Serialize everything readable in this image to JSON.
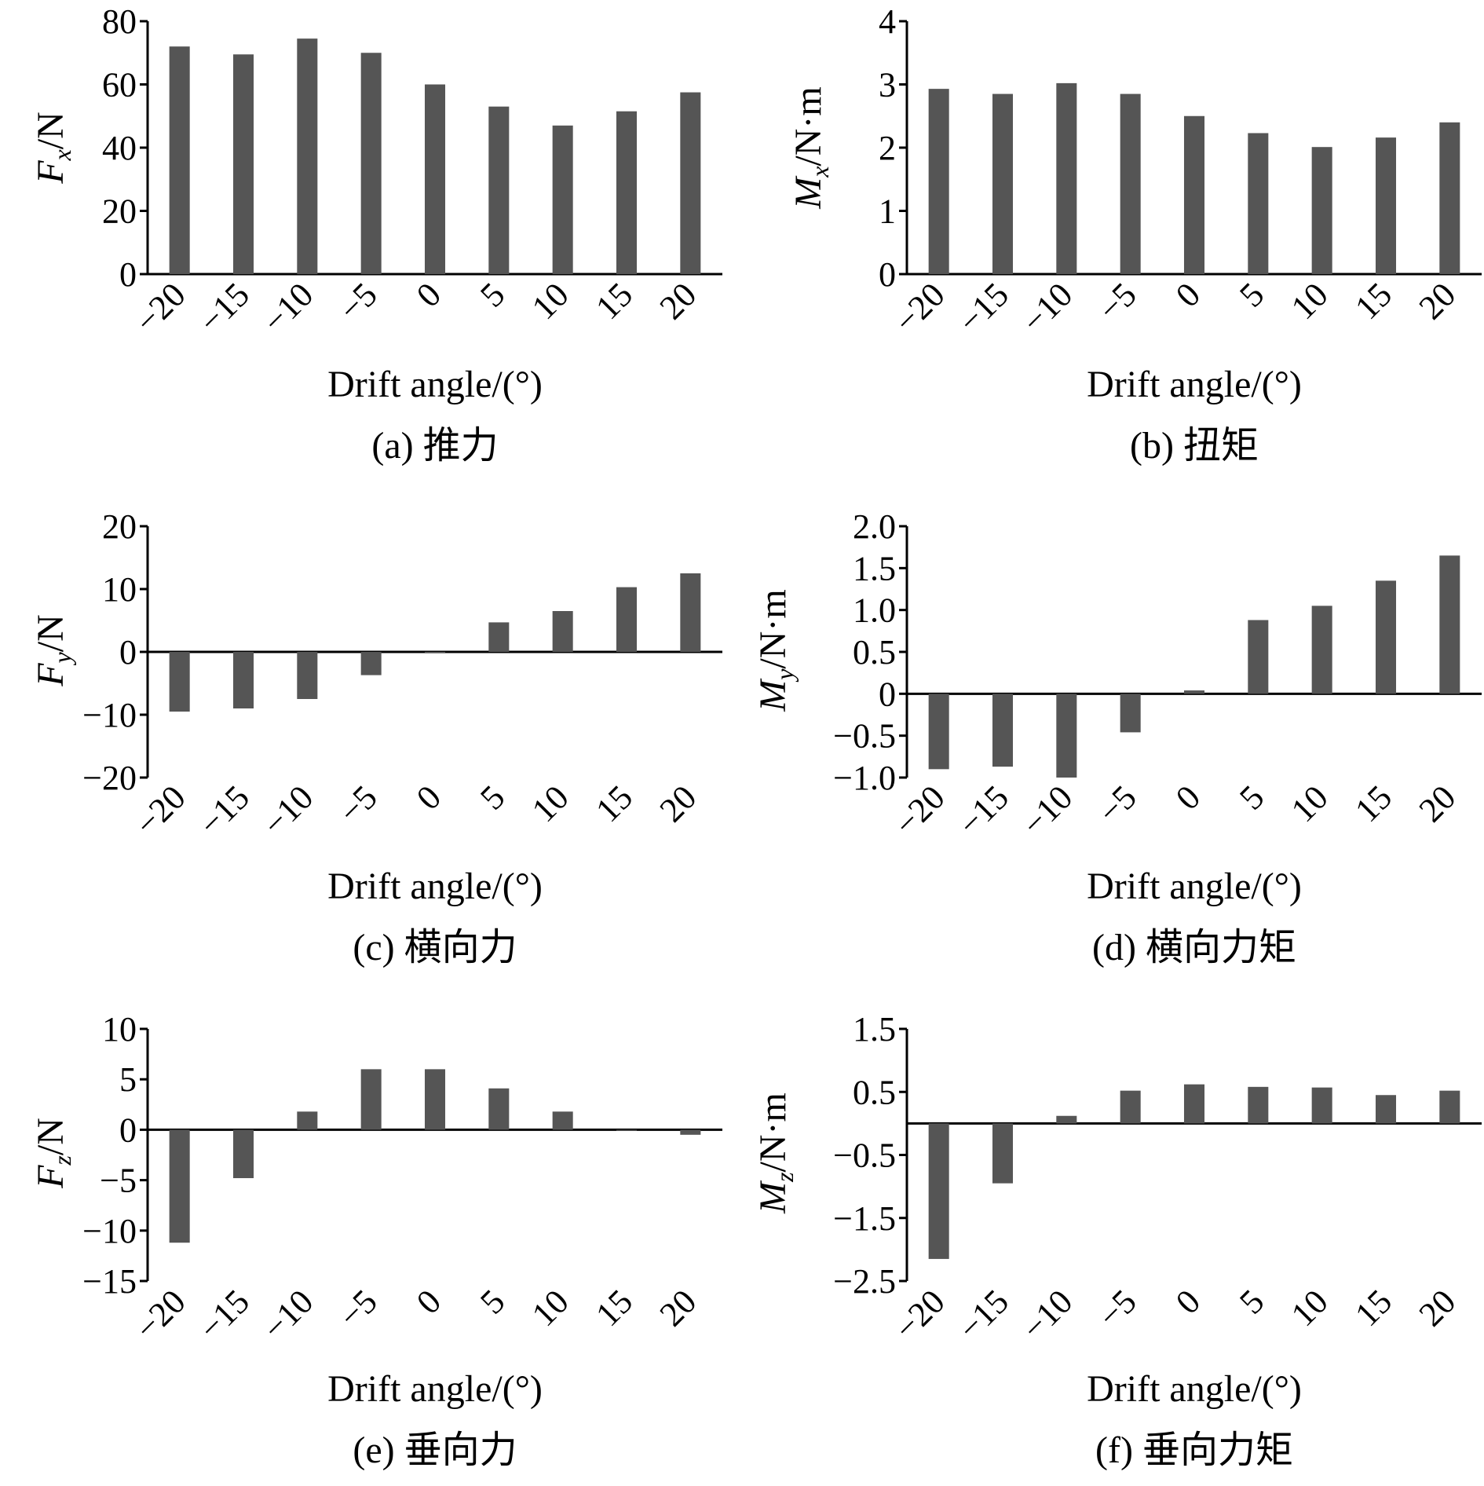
{
  "figure": {
    "bar_color": "#555555",
    "axis_color": "#000000"
  },
  "chart_data": [
    {
      "id": "a",
      "type": "bar",
      "title": "",
      "caption": "(a) 推力",
      "xlabel": "Drift angle/(°)",
      "ylabel": {
        "symbol": "F",
        "subscript": "x",
        "unit": "/N"
      },
      "categories": [
        "−20",
        "−15",
        "−10",
        "−5",
        "0",
        "5",
        "10",
        "15",
        "20"
      ],
      "values": [
        72,
        69.5,
        74.5,
        70,
        60,
        53,
        47,
        51.5,
        57.5
      ],
      "ylim": [
        0,
        80
      ],
      "yticks": [
        0,
        20,
        40,
        60,
        80
      ],
      "ytick_labels": [
        "0",
        "20",
        "40",
        "60",
        "80"
      ],
      "grid": false
    },
    {
      "id": "b",
      "type": "bar",
      "title": "",
      "caption": "(b) 扭矩",
      "xlabel": "Drift angle/(°)",
      "ylabel": {
        "symbol": "M",
        "subscript": "x",
        "unit": "/N·m"
      },
      "categories": [
        "−20",
        "−15",
        "−10",
        "−5",
        "0",
        "5",
        "10",
        "15",
        "20"
      ],
      "values": [
        2.93,
        2.85,
        3.02,
        2.85,
        2.5,
        2.23,
        2.01,
        2.16,
        2.4
      ],
      "ylim": [
        0,
        4
      ],
      "yticks": [
        0,
        1,
        2,
        3,
        4
      ],
      "ytick_labels": [
        "0",
        "1",
        "2",
        "3",
        "4"
      ],
      "grid": false
    },
    {
      "id": "c",
      "type": "bar",
      "title": "",
      "caption": "(c) 横向力",
      "xlabel": "Drift angle/(°)",
      "ylabel": {
        "symbol": "F",
        "subscript": "y",
        "unit": "/N"
      },
      "categories": [
        "−20",
        "−15",
        "−10",
        "−5",
        "0",
        "5",
        "10",
        "15",
        "20"
      ],
      "values": [
        -9.5,
        -9.0,
        -7.5,
        -3.7,
        0,
        4.7,
        6.5,
        10.3,
        12.5
      ],
      "ylim": [
        -20,
        20
      ],
      "yticks": [
        -20,
        -10,
        0,
        10,
        20
      ],
      "ytick_labels": [
        "−20",
        "−10",
        "0",
        "10",
        "20"
      ],
      "grid": false
    },
    {
      "id": "d",
      "type": "bar",
      "title": "",
      "caption": "(d) 横向力矩",
      "xlabel": "Drift angle/(°)",
      "ylabel": {
        "symbol": "M",
        "subscript": "y",
        "unit": "/N·m"
      },
      "categories": [
        "−20",
        "−15",
        "−10",
        "−5",
        "0",
        "5",
        "10",
        "15",
        "20"
      ],
      "values": [
        -0.9,
        -0.87,
        -1.0,
        -0.46,
        0.04,
        0.88,
        1.05,
        1.35,
        1.65
      ],
      "ylim": [
        -1.0,
        2.0
      ],
      "yticks": [
        -1.0,
        -0.5,
        0,
        0.5,
        1.0,
        1.5,
        2.0
      ],
      "ytick_labels": [
        "−1.0",
        "−0.5",
        "0",
        "0.5",
        "1.0",
        "1.5",
        "2.0"
      ],
      "grid": false
    },
    {
      "id": "e",
      "type": "bar",
      "title": "",
      "caption": "(e) 垂向力",
      "xlabel": "Drift angle/(°)",
      "ylabel": {
        "symbol": "F",
        "subscript": "z",
        "unit": "/N"
      },
      "categories": [
        "−20",
        "−15",
        "−10",
        "−5",
        "0",
        "5",
        "10",
        "15",
        "20"
      ],
      "values": [
        -11.2,
        -4.8,
        1.8,
        6.0,
        6.0,
        4.1,
        1.8,
        -0.1,
        -0.5
      ],
      "ylim": [
        -15,
        10
      ],
      "yticks": [
        -15,
        -10,
        -5,
        0,
        5,
        10
      ],
      "ytick_labels": [
        "−15",
        "−10",
        "−5",
        "0",
        "5",
        "10"
      ],
      "grid": false
    },
    {
      "id": "f",
      "type": "bar",
      "title": "",
      "caption": "(f) 垂向力矩",
      "xlabel": "Drift angle/(°)",
      "ylabel": {
        "symbol": "M",
        "subscript": "z",
        "unit": "/N·m"
      },
      "categories": [
        "−20",
        "−15",
        "−10",
        "−5",
        "0",
        "5",
        "10",
        "15",
        "20"
      ],
      "values": [
        -2.15,
        -0.95,
        0.12,
        0.52,
        0.62,
        0.58,
        0.57,
        0.45,
        0.52
      ],
      "ylim": [
        -2.5,
        1.5
      ],
      "yticks": [
        -2.5,
        -1.5,
        -0.5,
        0.5,
        1.5
      ],
      "ytick_labels": [
        "−2.5",
        "−1.5",
        "−0.5",
        "0.5",
        "1.5"
      ],
      "grid": false
    }
  ]
}
